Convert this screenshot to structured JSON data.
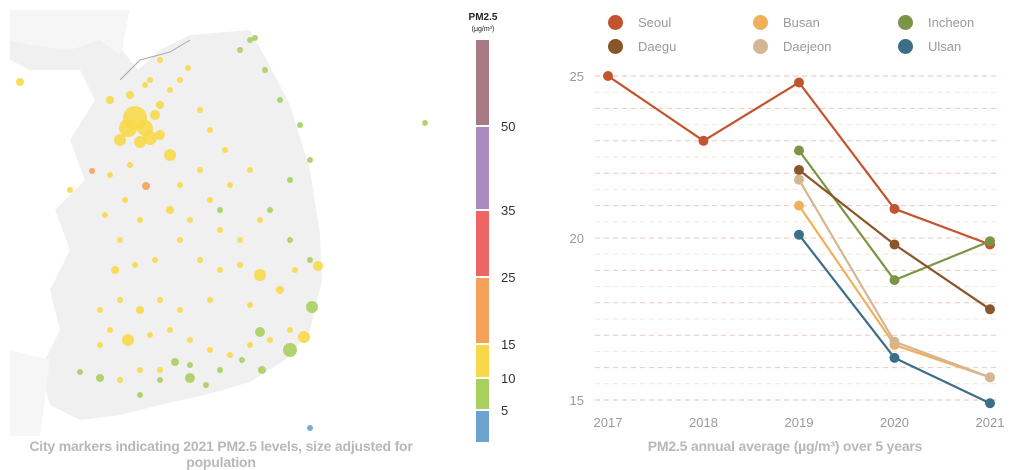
{
  "map": {
    "caption": "City markers indicating 2021 PM2.5 levels, size adjusted for population"
  },
  "color_scale": {
    "title": "PM2.5",
    "unit": "(μg/m³)",
    "bands": [
      {
        "from": 0,
        "to": 5,
        "color": "#6fa3cf"
      },
      {
        "from": 5,
        "to": 10,
        "color": "#a9cf5e"
      },
      {
        "from": 10,
        "to": 15,
        "color": "#f7d84a"
      },
      {
        "from": 15,
        "to": 25,
        "color": "#f4a259"
      },
      {
        "from": 25,
        "to": 35,
        "color": "#ee6565"
      },
      {
        "from": 35,
        "to": 50,
        "color": "#a98bc2"
      },
      {
        "from": 50,
        "to": 75,
        "color": "#a87a84"
      }
    ],
    "tick_labels": [
      "5",
      "10",
      "15",
      "25",
      "35",
      "50"
    ]
  },
  "chart_data": {
    "type": "line",
    "x": [
      2017,
      2018,
      2019,
      2020,
      2021
    ],
    "xtick_labels": [
      "2017",
      "2018",
      "2019",
      "2020",
      "2021"
    ],
    "ytick_labels": [
      "15",
      "20",
      "25"
    ],
    "yticks": [
      15,
      20,
      25
    ],
    "ylim": [
      14.5,
      25.5
    ],
    "grid": "horizontal dashed",
    "legend_position": "top",
    "caption": "PM2.5 annual average (µg/m³) over 5 years",
    "series": [
      {
        "name": "Seoul",
        "color": "#c2552f",
        "values": [
          25.0,
          23.0,
          24.8,
          20.9,
          19.8
        ]
      },
      {
        "name": "Busan",
        "color": "#efb05c",
        "values": [
          null,
          null,
          21.0,
          16.7,
          15.7
        ]
      },
      {
        "name": "Incheon",
        "color": "#7b9445",
        "values": [
          null,
          null,
          22.7,
          18.7,
          19.9
        ]
      },
      {
        "name": "Daegu",
        "color": "#8a5528",
        "values": [
          null,
          null,
          22.1,
          19.8,
          17.8
        ]
      },
      {
        "name": "Daejeon",
        "color": "#d3b793",
        "values": [
          null,
          null,
          21.8,
          16.8,
          15.7
        ]
      },
      {
        "name": "Ulsan",
        "color": "#3d6e88",
        "values": [
          null,
          null,
          20.1,
          16.3,
          14.9
        ]
      }
    ]
  }
}
